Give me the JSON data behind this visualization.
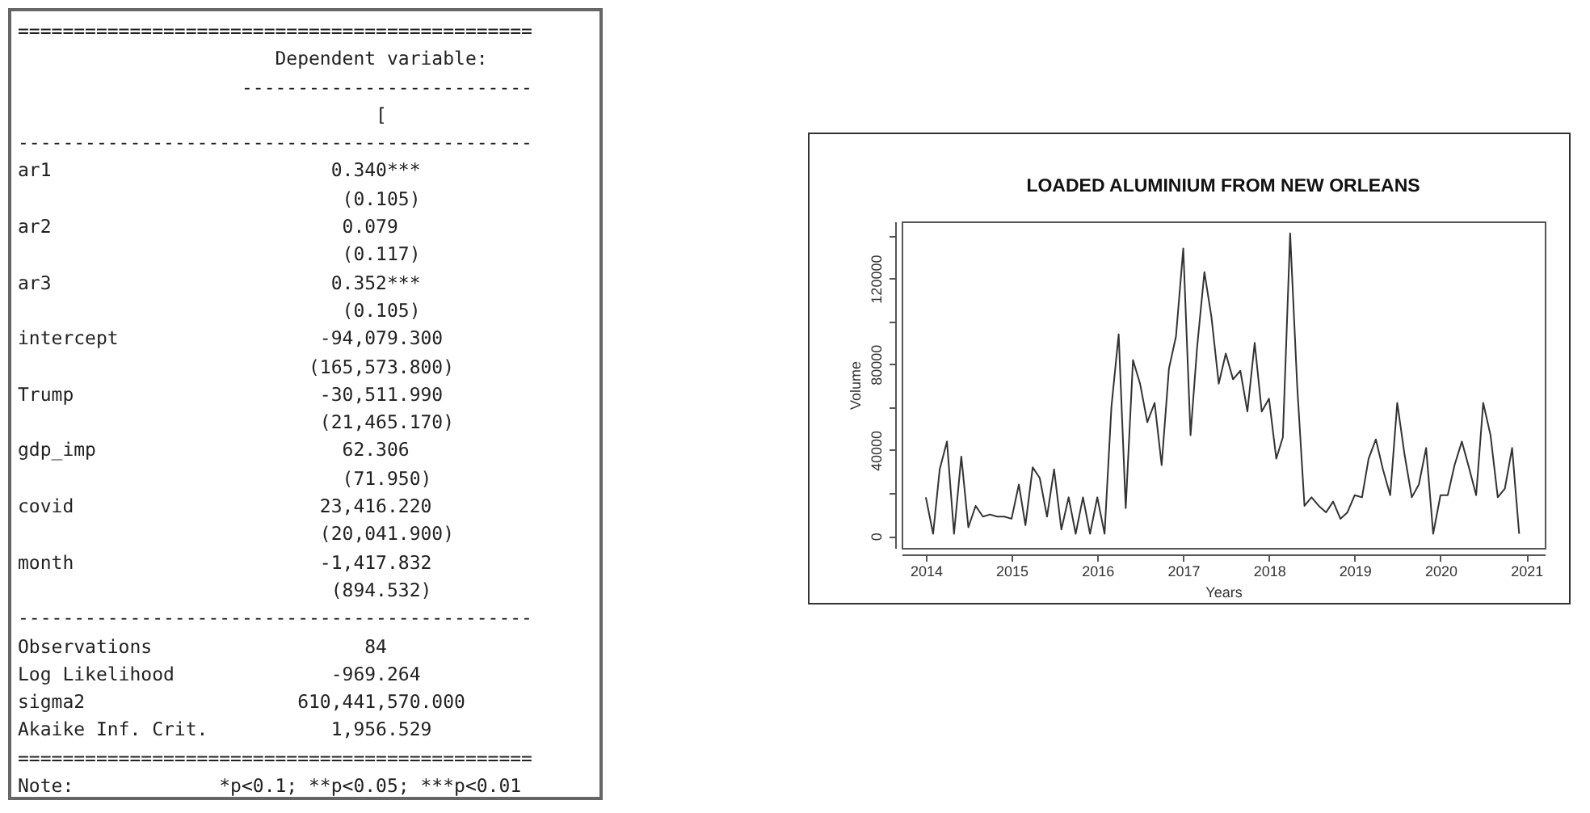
{
  "chart_data": [
    {
      "type": "other",
      "annotations": [
        "==============================================",
        "                       Dependent variable:",
        "                    --------------------------",
        "                                [",
        "----------------------------------------------",
        "ar1                         0.340***",
        "                             (0.105)",
        "ar2                          0.079",
        "                             (0.117)",
        "ar3                         0.352***",
        "                             (0.105)",
        "intercept                  -94,079.300",
        "                          (165,573.800)",
        "Trump                      -30,511.990",
        "                           (21,465.170)",
        "gdp_imp                      62.306",
        "                             (71.950)",
        "covid                      23,416.220",
        "                           (20,041.900)",
        "month                      -1,417.832",
        "                            (894.532)",
        "----------------------------------------------",
        "Observations                   84",
        "Log Likelihood              -969.264",
        "sigma2                   610,441,570.000",
        "Akaike Inf. Crit.           1,956.529",
        "==============================================",
        "Note:             *p<0.1; **p<0.05; ***p<0.01"
      ]
    },
    {
      "type": "line",
      "title": "LOADED ALUMINIUM FROM NEW ORLEANS",
      "xlabel": "Years",
      "ylabel": "Volume",
      "x": [
        "2014-01",
        "2014-02",
        "2014-03",
        "2014-04",
        "2014-05",
        "2014-06",
        "2014-07",
        "2014-08",
        "2014-09",
        "2014-10",
        "2014-11",
        "2014-12",
        "2015-01",
        "2015-02",
        "2015-03",
        "2015-04",
        "2015-05",
        "2015-06",
        "2015-07",
        "2015-08",
        "2015-09",
        "2015-10",
        "2015-11",
        "2015-12",
        "2016-01",
        "2016-02",
        "2016-03",
        "2016-04",
        "2016-05",
        "2016-06",
        "2016-07",
        "2016-08",
        "2016-09",
        "2016-10",
        "2016-11",
        "2016-12",
        "2017-01",
        "2017-02",
        "2017-03",
        "2017-04",
        "2017-05",
        "2017-06",
        "2017-07",
        "2017-08",
        "2017-09",
        "2017-10",
        "2017-11",
        "2017-12",
        "2018-01",
        "2018-02",
        "2018-03",
        "2018-04",
        "2018-05",
        "2018-06",
        "2018-07",
        "2018-08",
        "2018-09",
        "2018-10",
        "2018-11",
        "2018-12",
        "2019-01",
        "2019-02",
        "2019-03",
        "2019-04",
        "2019-05",
        "2019-06",
        "2019-07",
        "2019-08",
        "2019-09",
        "2019-10",
        "2019-11",
        "2019-12",
        "2020-01",
        "2020-02",
        "2020-03",
        "2020-04",
        "2020-05",
        "2020-06",
        "2020-07",
        "2020-08",
        "2020-09",
        "2020-10",
        "2020-11",
        "2020-12"
      ],
      "series": [
        {
          "color": "#333333",
          "values": [
            18000,
            1000,
            31000,
            44000,
            1000,
            37000,
            4000,
            14000,
            9000,
            10000,
            9000,
            9000,
            8000,
            24000,
            5000,
            32000,
            27000,
            9000,
            31000,
            3000,
            18000,
            1000,
            18000,
            1000,
            18000,
            1000,
            60000,
            94000,
            13000,
            82000,
            71000,
            53000,
            62000,
            33000,
            78000,
            93000,
            134000,
            47000,
            88000,
            123000,
            102000,
            71000,
            85000,
            73000,
            77000,
            58000,
            90000,
            58000,
            64000,
            36000,
            46000,
            141000,
            70000,
            14000,
            18000,
            14000,
            11000,
            16000,
            8000,
            11000,
            19000,
            18000,
            36000,
            45000,
            31000,
            19000,
            62000,
            38000,
            18000,
            24000,
            41000,
            1000,
            19000,
            19000,
            33000,
            44000,
            32000,
            19000,
            62000,
            47000,
            18000,
            22000,
            41000,
            1000
          ]
        }
      ],
      "xlim": [
        "2013-09-20",
        "2021-03-20"
      ],
      "xticks": [
        "2014",
        "2015",
        "2016",
        "2017",
        "2018",
        "2019",
        "2020",
        "2021"
      ],
      "ylim": [
        -5600,
        146600
      ],
      "yticks": [
        0,
        {
          "value": 20000,
          "label": null
        },
        40000,
        {
          "value": 60000,
          "label": null
        },
        80000,
        {
          "value": 100000,
          "label": null
        },
        120000,
        {
          "value": 140000,
          "label": null
        }
      ]
    }
  ]
}
